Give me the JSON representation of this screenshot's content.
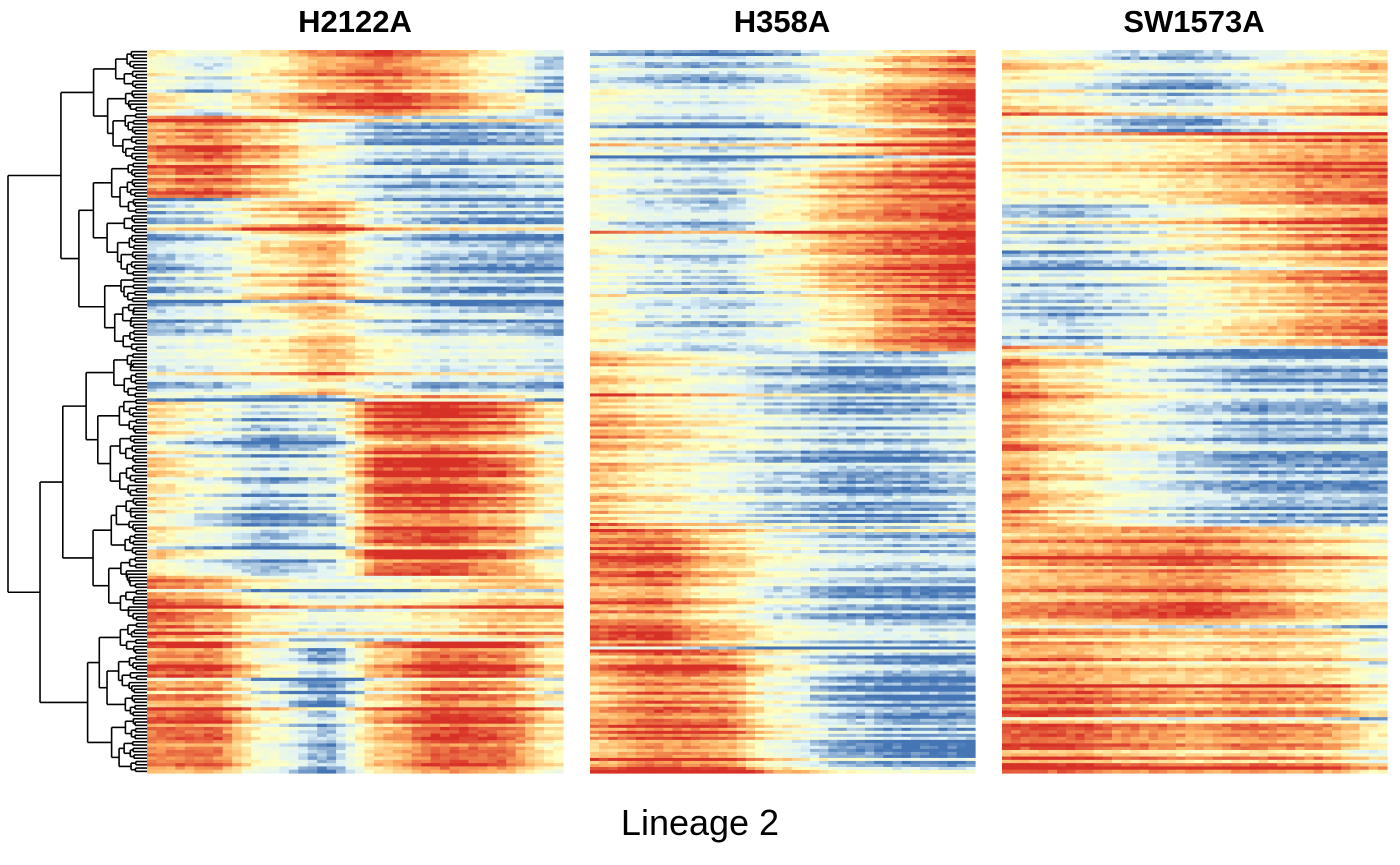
{
  "chart_data": {
    "type": "heatmap",
    "caption": "Lineage 2",
    "legend": "none",
    "grid": false,
    "dendrogram": "left",
    "colors": {
      "low": "#4575B4",
      "mid_low": "#E0F3F8",
      "mid": "#FFFFBF",
      "mid_high": "#FDAE61",
      "high": "#D73027"
    },
    "panels": [
      {
        "title": "H2122A",
        "row_blocks": [
          {
            "rows": 20,
            "profile": [
              0.5,
              0.3,
              0.55,
              0.8,
              0.9,
              0.75,
              0.5,
              0.2
            ]
          },
          {
            "rows": 25,
            "profile": [
              0.8,
              0.9,
              0.7,
              0.4,
              0.2,
              0.15,
              0.2,
              0.25
            ]
          },
          {
            "rows": 35,
            "profile": [
              0.2,
              0.3,
              0.6,
              0.75,
              0.35,
              0.2,
              0.15,
              0.15
            ]
          },
          {
            "rows": 25,
            "profile": [
              0.3,
              0.35,
              0.5,
              0.7,
              0.45,
              0.3,
              0.35,
              0.25
            ]
          },
          {
            "rows": 55,
            "profile": [
              0.55,
              0.35,
              0.15,
              0.25,
              0.9,
              0.95,
              0.8,
              0.45
            ]
          },
          {
            "rows": 20,
            "profile": [
              0.8,
              0.7,
              0.4,
              0.25,
              0.35,
              0.45,
              0.6,
              0.55
            ]
          },
          {
            "rows": 40,
            "profile": [
              0.85,
              0.9,
              0.45,
              0.15,
              0.7,
              0.95,
              0.9,
              0.55
            ]
          }
        ]
      },
      {
        "title": "H358A",
        "row_blocks": [
          {
            "rows": 40,
            "profile": [
              0.35,
              0.25,
              0.2,
              0.3,
              0.5,
              0.75,
              0.9
            ]
          },
          {
            "rows": 40,
            "profile": [
              0.4,
              0.25,
              0.2,
              0.45,
              0.7,
              0.85,
              0.95
            ]
          },
          {
            "rows": 20,
            "profile": [
              0.5,
              0.3,
              0.25,
              0.35,
              0.6,
              0.85,
              0.95
            ]
          },
          {
            "rows": 60,
            "profile": [
              0.7,
              0.55,
              0.4,
              0.25,
              0.15,
              0.15,
              0.25
            ]
          },
          {
            "rows": 40,
            "profile": [
              0.8,
              0.85,
              0.6,
              0.35,
              0.2,
              0.15,
              0.15
            ]
          },
          {
            "rows": 40,
            "profile": [
              0.75,
              0.9,
              0.85,
              0.45,
              0.2,
              0.1,
              0.1
            ]
          }
        ]
      },
      {
        "title": "SW1573A",
        "row_blocks": [
          {
            "rows": 25,
            "profile": [
              0.55,
              0.45,
              0.25,
              0.2,
              0.35,
              0.5,
              0.6
            ]
          },
          {
            "rows": 20,
            "profile": [
              0.5,
              0.5,
              0.55,
              0.65,
              0.75,
              0.85,
              0.9
            ]
          },
          {
            "rows": 45,
            "profile": [
              0.25,
              0.2,
              0.3,
              0.45,
              0.6,
              0.75,
              0.85
            ]
          },
          {
            "rows": 55,
            "profile": [
              0.8,
              0.6,
              0.4,
              0.25,
              0.15,
              0.15,
              0.15
            ]
          },
          {
            "rows": 30,
            "profile": [
              0.7,
              0.75,
              0.8,
              0.85,
              0.75,
              0.6,
              0.45
            ]
          },
          {
            "rows": 45,
            "profile": [
              0.85,
              0.85,
              0.75,
              0.7,
              0.75,
              0.7,
              0.45
            ]
          }
        ]
      }
    ]
  }
}
